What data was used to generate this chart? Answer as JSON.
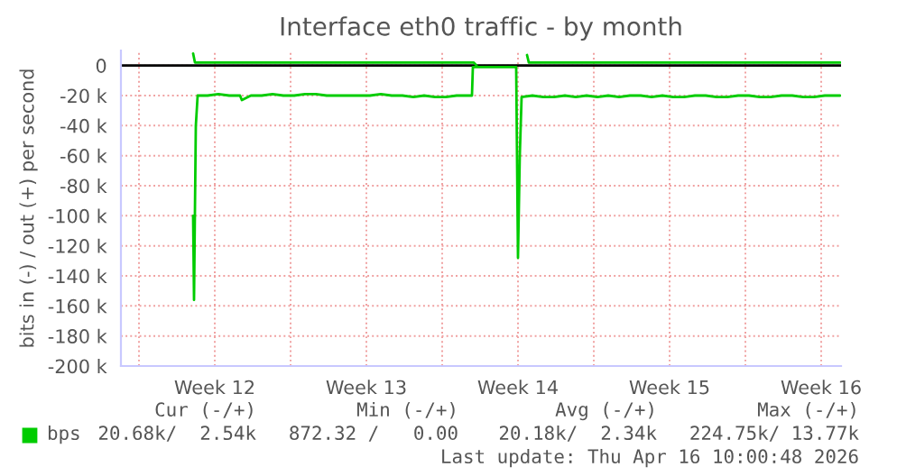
{
  "chart_data": {
    "type": "line",
    "title": "Interface eth0 traffic - by month",
    "ylabel": "bits in (-) / out (+) per second",
    "xlim": [
      "2026-03-14T04:00",
      "2026-04-16T10:00"
    ],
    "xticks": [
      {
        "value": "2026-03-15",
        "label": null
      },
      {
        "value": "2026-03-18T12:00",
        "label": "Week 12"
      },
      {
        "value": "2026-03-22",
        "label": null
      },
      {
        "value": "2026-03-25T12:00",
        "label": "Week 13"
      },
      {
        "value": "2026-03-29",
        "label": null
      },
      {
        "value": "2026-04-01T12:00",
        "label": "Week 14"
      },
      {
        "value": "2026-04-05",
        "label": null
      },
      {
        "value": "2026-04-08T12:00",
        "label": "Week 15"
      },
      {
        "value": "2026-04-12",
        "label": null
      },
      {
        "value": "2026-04-15T12:00",
        "label": "Week 16"
      }
    ],
    "ylim": [
      -200,
      10
    ],
    "yticks": [
      {
        "value": -200,
        "label": "-200 k"
      },
      {
        "value": -180,
        "label": "-180 k"
      },
      {
        "value": -160,
        "label": "-160 k"
      },
      {
        "value": -140,
        "label": "-140 k"
      },
      {
        "value": -120,
        "label": "-120 k"
      },
      {
        "value": -100,
        "label": "-100 k"
      },
      {
        "value": -80,
        "label": "-80 k"
      },
      {
        "value": -60,
        "label": "-60 k"
      },
      {
        "value": -40,
        "label": "-40 k"
      },
      {
        "value": -20,
        "label": "-20 k"
      },
      0
    ],
    "grid": true,
    "legend": "bottom left",
    "marker": "none",
    "line_style": "solid",
    "ref_lines": [
      {
        "axis": "y",
        "value": 0,
        "color": "#000000"
      }
    ],
    "series": [
      {
        "name": "bps",
        "color": "#00cc00",
        "x": [
          "2026-03-17T12:00",
          "2026-03-17T13:00",
          "2026-03-17T15:00",
          "2026-03-17T17:00",
          "2026-03-18T04:00",
          "2026-03-18T16:00",
          "2026-03-19T04:00",
          "2026-03-19T16:00",
          "2026-03-19T18:00",
          "2026-03-20T04:00",
          "2026-03-20T16:00",
          "2026-03-21T04:00",
          "2026-03-21T16:00",
          "2026-03-22T04:00",
          "2026-03-22T16:00",
          "2026-03-23T04:00",
          "2026-03-23T16:00",
          "2026-03-24T04:00",
          "2026-03-24T16:00",
          "2026-03-25T04:00",
          "2026-03-25T16:00",
          "2026-03-26T04:00",
          "2026-03-26T16:00",
          "2026-03-27T04:00",
          "2026-03-27T16:00",
          "2026-03-28T04:00",
          "2026-03-28T16:00",
          "2026-03-29T04:00",
          "2026-03-29T16:00",
          "2026-03-30T04:00",
          "2026-03-30T09:00",
          "2026-03-30T10:00",
          "2026-03-31T04:00",
          "2026-04-01T10:00",
          "2026-04-01T12:00",
          "2026-04-01T14:00",
          "2026-04-01T16:00",
          "2026-04-02T04:00",
          "2026-04-02T16:00",
          "2026-04-03T04:00",
          "2026-04-03T16:00",
          "2026-04-04T04:00",
          "2026-04-04T16:00",
          "2026-04-05T04:00",
          "2026-04-05T16:00",
          "2026-04-06T04:00",
          "2026-04-06T16:00",
          "2026-04-07T04:00",
          "2026-04-07T16:00",
          "2026-04-08T04:00",
          "2026-04-08T16:00",
          "2026-04-09T04:00",
          "2026-04-09T16:00",
          "2026-04-10T04:00",
          "2026-04-10T16:00",
          "2026-04-11T04:00",
          "2026-04-11T16:00",
          "2026-04-12T04:00",
          "2026-04-12T16:00",
          "2026-04-13T04:00",
          "2026-04-13T16:00",
          "2026-04-14T04:00",
          "2026-04-14T16:00",
          "2026-04-15T04:00",
          "2026-04-15T16:00",
          "2026-04-16T09:00"
        ],
        "values": [
          -100,
          -156,
          -40,
          -20,
          -20,
          -19,
          -20,
          -20,
          -23,
          -20,
          -20,
          -19,
          -20,
          -20,
          -19,
          -19,
          -20,
          -20,
          -20,
          -20,
          -20,
          -19,
          -20,
          -20,
          -21,
          -20,
          -21,
          -21,
          -20,
          -20,
          -20,
          -1,
          -1,
          -1,
          -128,
          -60,
          -21,
          -20,
          -21,
          -21,
          -20,
          -21,
          -20,
          -21,
          -20,
          -21,
          -20,
          -20,
          -21,
          -20,
          -21,
          -21,
          -20,
          -20,
          -21,
          -21,
          -20,
          -20,
          -21,
          -21,
          -20,
          -20,
          -21,
          -21,
          -20,
          -20
        ]
      },
      {
        "color": "#00cc00",
        "x": [
          "2026-03-17T12:00",
          "2026-03-17T14:00",
          "2026-03-17T16:00",
          "2026-03-30T11:00",
          "2026-03-30T14:00",
          "2026-03-31T04:00",
          "2026-04-01T22:00",
          "2026-04-02T00:00",
          "2026-04-16T09:00"
        ],
        "values": [
          8,
          2,
          2,
          2,
          0,
          null,
          7,
          2,
          2
        ]
      }
    ],
    "annotations": [
      "Cur (-/+)",
      "Min (-/+)",
      "Avg (-/+)",
      "Max (-/+)",
      "20.68k/  2.54k",
      "872.32 /   0.00",
      "20.18k/  2.34k",
      "224.75k/ 13.77k",
      "Last update: Thu Apr 16 10:00:48 2026"
    ]
  }
}
